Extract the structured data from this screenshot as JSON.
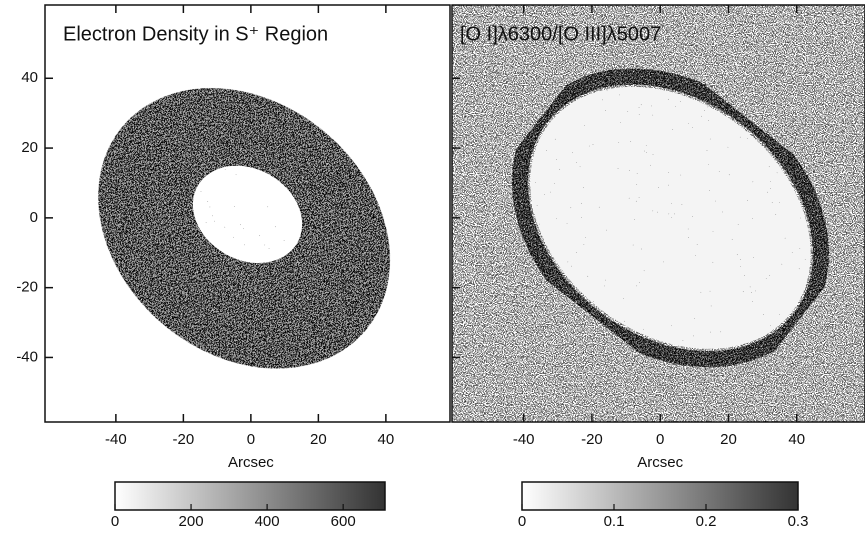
{
  "chart_data": [
    {
      "type": "image",
      "title": "Electron Density in S⁺ Region",
      "xlabel": "Arcsec",
      "xlim": [
        -61,
        59
      ],
      "ylim": [
        -58.5,
        61
      ],
      "xticks": [
        -40,
        -20,
        0,
        20,
        40
      ],
      "yticks": [
        -40,
        -20,
        0,
        20,
        40
      ],
      "colorbar": {
        "lim": [
          0,
          710
        ],
        "ticks": [
          0,
          200,
          400,
          600
        ]
      }
    },
    {
      "type": "image",
      "title": "[O I]λ6300/[O III]λ5007",
      "xlabel": "Arcsec",
      "xlim": [
        -61,
        60
      ],
      "ylim": [
        -58.5,
        61
      ],
      "xticks": [
        -40,
        -20,
        0,
        20,
        40
      ],
      "yticks": [
        -40,
        -20,
        0,
        20,
        40
      ],
      "colorbar": {
        "lim": [
          0,
          0.3
        ],
        "ticks": [
          0,
          0.1,
          0.2,
          0.3
        ]
      }
    }
  ]
}
